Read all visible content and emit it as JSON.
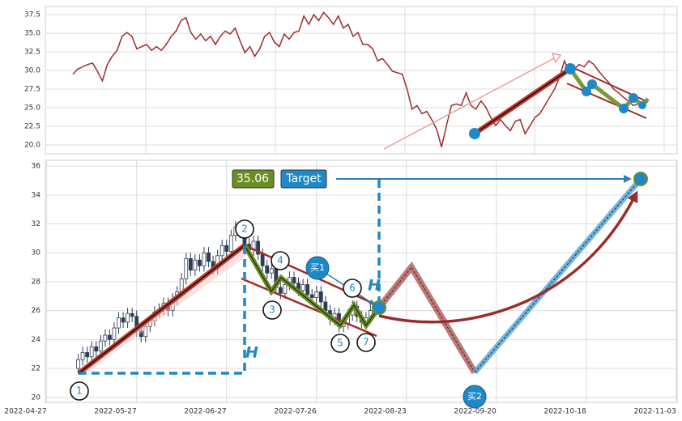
{
  "chart_data": [
    {
      "type": "line",
      "series": [
        {
          "color": "#9b2c2c",
          "values": [
            29.5,
            30.2,
            30.5,
            30.8,
            31.0,
            29.9,
            28.6,
            30.8,
            31.9,
            32.7,
            34.6,
            35.1,
            34.6,
            32.9,
            33.2,
            33.5,
            32.7,
            33.2,
            32.7,
            33.5,
            34.6,
            35.3,
            36.7,
            37.1,
            35.1,
            34.2,
            34.9,
            34.0,
            34.6,
            33.5,
            34.6,
            35.3,
            34.9,
            35.7,
            34.0,
            32.4,
            33.2,
            31.9,
            32.9,
            34.6,
            35.1,
            33.8,
            33.2,
            34.9,
            34.2,
            35.1,
            35.3,
            37.3,
            36.2,
            37.5,
            36.7,
            37.8,
            37.1,
            36.2,
            37.3,
            35.7,
            36.2,
            34.6,
            35.1,
            33.5,
            33.5,
            32.9,
            31.3,
            31.6,
            30.8,
            29.9,
            29.7,
            29.5,
            27.5,
            24.8,
            25.3,
            24.2,
            24.5,
            23.4,
            22.1,
            19.7,
            22.6,
            25.3,
            25.5,
            25.3,
            27.0,
            25.3,
            24.8,
            25.9,
            25.1,
            23.7,
            22.6,
            23.4,
            22.6,
            21.9,
            23.2,
            23.4,
            21.5,
            22.6,
            23.7,
            24.2,
            25.3,
            26.4,
            27.5,
            29.1,
            31.3,
            29.7,
            30.2,
            30.8,
            30.5,
            31.3,
            30.8,
            29.9,
            29.1,
            28.4,
            27.5,
            27.0,
            26.4,
            25.9,
            25.3,
            25.5,
            25.1,
            25.9
          ]
        }
      ],
      "ylim": [
        18.8,
        38.6
      ],
      "yticks": [
        {
          "value": 20,
          "label": "20.0"
        },
        22.5,
        {
          "value": 25,
          "label": "25.0"
        },
        27.5,
        {
          "value": 30,
          "label": "30.0"
        },
        32.5,
        {
          "value": 35,
          "label": "35.0"
        },
        37.5
      ],
      "grid": true
    },
    {
      "type": "candlestick",
      "up_color": "#ffffff",
      "down_color": "#2f3e55",
      "open": [
        22.0,
        22.6,
        23.1,
        22.8,
        23.5,
        23.2,
        23.9,
        24.3,
        24.0,
        24.8,
        25.5,
        25.2,
        25.8,
        25.6,
        24.6,
        24.2,
        24.9,
        25.3,
        25.9,
        26.1,
        26.5,
        26.0,
        26.8,
        27.3,
        28.2,
        29.6,
        28.8,
        29.5,
        29.1,
        30.0,
        29.4,
        28.9,
        29.8,
        30.5,
        30.1,
        31.2,
        31.8,
        31.4,
        30.6,
        30.2,
        30.8,
        29.9,
        29.1,
        28.6,
        28.9,
        27.6,
        27.2,
        27.8,
        28.3,
        27.9,
        27.4,
        27.8,
        27.1,
        26.9,
        27.3,
        26.6,
        26.0,
        25.4,
        25.8,
        24.9,
        25.1,
        25.7,
        26.3,
        25.6,
        25.2,
        25.5
      ],
      "high": [
        23.0,
        23.5,
        23.5,
        23.9,
        23.9,
        24.3,
        24.7,
        24.7,
        25.2,
        25.9,
        25.9,
        26.2,
        26.2,
        26.0,
        25.0,
        25.3,
        25.7,
        26.3,
        26.5,
        26.9,
        26.9,
        27.2,
        27.7,
        28.6,
        30.0,
        30.0,
        29.9,
        29.9,
        30.4,
        30.4,
        29.8,
        30.2,
        30.9,
        30.9,
        31.6,
        32.2,
        32.2,
        31.8,
        31.0,
        31.2,
        31.2,
        30.3,
        29.5,
        29.3,
        29.3,
        28.0,
        28.2,
        28.7,
        28.7,
        28.3,
        28.2,
        28.2,
        27.5,
        27.7,
        27.7,
        27.0,
        26.4,
        26.2,
        26.2,
        25.5,
        26.1,
        26.7,
        26.7,
        26.0,
        25.9,
        26.4
      ],
      "low": [
        21.6,
        22.2,
        22.4,
        22.4,
        22.8,
        22.8,
        23.5,
        23.6,
        23.6,
        24.4,
        24.8,
        24.8,
        25.2,
        24.2,
        23.8,
        23.8,
        24.5,
        24.9,
        25.5,
        25.7,
        25.6,
        25.6,
        26.4,
        26.9,
        27.8,
        28.4,
        28.4,
        28.7,
        28.7,
        29.0,
        28.5,
        28.5,
        29.4,
        29.7,
        29.7,
        30.8,
        31.0,
        30.2,
        29.8,
        29.8,
        29.5,
        28.7,
        28.2,
        28.2,
        27.2,
        26.8,
        26.8,
        27.4,
        27.5,
        27.0,
        27.0,
        26.7,
        26.5,
        26.5,
        26.2,
        25.6,
        25.0,
        25.0,
        24.5,
        24.5,
        24.7,
        25.3,
        25.2,
        24.8,
        24.8,
        25.1
      ],
      "close": [
        22.6,
        23.1,
        22.8,
        23.5,
        23.2,
        23.9,
        24.3,
        24.0,
        24.8,
        25.5,
        25.2,
        25.8,
        25.6,
        24.6,
        24.2,
        24.9,
        25.3,
        25.9,
        26.1,
        26.5,
        26.0,
        26.8,
        27.3,
        28.2,
        29.6,
        28.8,
        29.5,
        29.1,
        30.0,
        29.4,
        28.9,
        29.8,
        30.5,
        30.1,
        31.2,
        31.8,
        31.4,
        30.6,
        30.2,
        30.8,
        29.9,
        29.1,
        28.6,
        28.9,
        27.6,
        27.2,
        27.8,
        28.3,
        27.9,
        27.4,
        27.8,
        27.1,
        26.9,
        27.3,
        26.6,
        26.0,
        25.4,
        25.8,
        24.9,
        25.1,
        25.7,
        26.3,
        25.6,
        25.2,
        25.5,
        26.0
      ],
      "xlim": [
        -7.3,
        133.2
      ],
      "xticks": [
        {
          "value": -7,
          "label": "2022-04-27"
        },
        {
          "value": 13,
          "label": "2022-05-27"
        },
        {
          "value": 33,
          "label": "2022-06-27"
        },
        {
          "value": 53,
          "label": "2022-07-26"
        },
        {
          "value": 73,
          "label": "2022-08-23"
        },
        {
          "value": 93,
          "label": "2022-09-20"
        },
        {
          "value": 113,
          "label": "2022-10-18"
        },
        {
          "value": 133,
          "label": "2022-11-03"
        }
      ],
      "ylim": [
        19.65,
        36.4
      ],
      "yticks": [
        20,
        22,
        24,
        26,
        28,
        30,
        32,
        34,
        36
      ],
      "grid": true,
      "annotations": {
        "price_label": "35.06",
        "target_label": "Target",
        "buy1": "买1",
        "buy2": "买2",
        "h_label": "H",
        "points": [
          "1",
          "2",
          "3",
          "4",
          "5",
          "6",
          "7"
        ]
      }
    }
  ]
}
